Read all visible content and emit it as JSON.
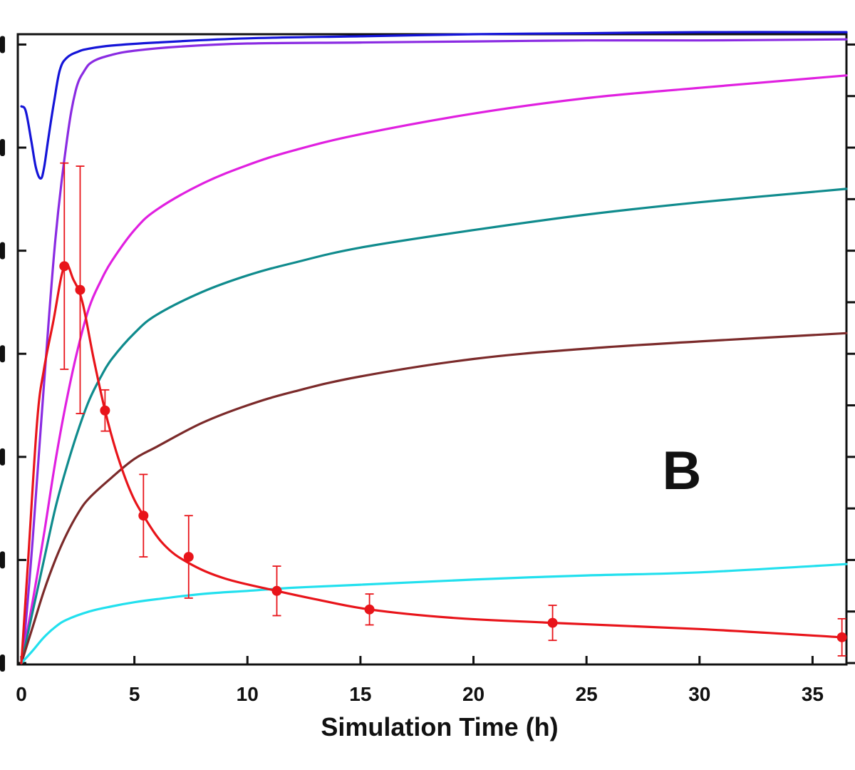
{
  "chart_data": {
    "type": "line",
    "title": "",
    "panel_label": "B",
    "xlabel": "Simulation Time (h)",
    "ylabel": "",
    "xlim": [
      0,
      36.5
    ],
    "ylim": [
      0,
      6.1
    ],
    "x_ticks": [
      0,
      5,
      10,
      15,
      20,
      25,
      30,
      35
    ],
    "x_tick_labels": [
      "0",
      "5",
      "10",
      "15",
      "20",
      "25",
      "30",
      "35"
    ],
    "left_y_ticks": [
      0,
      1,
      2,
      3,
      4,
      5,
      6
    ],
    "right_y_ticks": [
      0,
      0.5,
      1,
      1.5,
      2,
      2.5,
      3,
      3.5,
      4,
      4.5,
      5,
      5.5,
      6
    ],
    "grid": false,
    "legend": "none",
    "series": [
      {
        "color": "#1414d8",
        "x": [
          0,
          0.2,
          0.45,
          0.65,
          0.85,
          1.0,
          1.2,
          1.45,
          1.7,
          2.0,
          2.5,
          3,
          4,
          6,
          10,
          15,
          20,
          25,
          30,
          36.5
        ],
        "values": [
          5.4,
          5.35,
          5.05,
          4.8,
          4.7,
          4.8,
          5.1,
          5.45,
          5.75,
          5.87,
          5.93,
          5.96,
          5.99,
          6.02,
          6.06,
          6.08,
          6.1,
          6.11,
          6.12,
          6.12
        ]
      },
      {
        "color": "#8a2be2",
        "x": [
          0,
          0.2,
          0.5,
          1.0,
          1.5,
          2.0,
          2.4,
          2.8,
          3.2,
          4,
          5,
          7,
          10,
          15,
          20,
          25,
          30,
          36.5
        ],
        "values": [
          0,
          0.4,
          1.2,
          2.7,
          4.1,
          5.05,
          5.55,
          5.75,
          5.84,
          5.9,
          5.94,
          5.98,
          6.01,
          6.02,
          6.03,
          6.04,
          6.04,
          6.05
        ]
      },
      {
        "color": "#e020e0",
        "x": [
          0,
          0.5,
          1,
          1.5,
          2,
          2.5,
          3,
          3.5,
          4,
          5,
          6,
          8,
          10,
          12,
          15,
          20,
          25,
          30,
          36.5
        ],
        "values": [
          0,
          0.6,
          1.25,
          1.95,
          2.55,
          3.05,
          3.45,
          3.7,
          3.9,
          4.2,
          4.4,
          4.65,
          4.83,
          4.97,
          5.13,
          5.33,
          5.48,
          5.58,
          5.7
        ]
      },
      {
        "color": "#0f8b8d",
        "x": [
          0,
          0.5,
          1,
          1.5,
          2,
          2.5,
          3,
          3.5,
          4,
          5,
          6,
          8,
          10,
          12,
          15,
          20,
          25,
          30,
          36.5
        ],
        "values": [
          0,
          0.5,
          1.0,
          1.5,
          1.9,
          2.25,
          2.55,
          2.77,
          2.95,
          3.2,
          3.38,
          3.6,
          3.76,
          3.88,
          4.03,
          4.2,
          4.35,
          4.47,
          4.6
        ]
      },
      {
        "color": "#7b2a2a",
        "x": [
          0,
          0.5,
          1,
          1.5,
          2,
          2.5,
          3,
          4,
          5,
          6,
          8,
          10,
          12,
          15,
          20,
          25,
          30,
          36.5
        ],
        "values": [
          0,
          0.35,
          0.7,
          1.0,
          1.25,
          1.45,
          1.6,
          1.8,
          1.98,
          2.1,
          2.33,
          2.5,
          2.63,
          2.78,
          2.95,
          3.05,
          3.12,
          3.2
        ]
      },
      {
        "color": "#22e0ee",
        "x": [
          0,
          0.5,
          1,
          1.5,
          2,
          3,
          4,
          5,
          6,
          8,
          10,
          12,
          15,
          20,
          25,
          30,
          36.5
        ],
        "values": [
          0,
          0.12,
          0.25,
          0.35,
          0.42,
          0.5,
          0.55,
          0.59,
          0.62,
          0.67,
          0.7,
          0.73,
          0.76,
          0.81,
          0.85,
          0.88,
          0.96
        ]
      },
      {
        "color": "#e8141a",
        "x": [
          0,
          0.3,
          0.7,
          1.0,
          1.4,
          1.9,
          2.3,
          2.7,
          3.2,
          3.7,
          4.2,
          4.8,
          5.4,
          6.3,
          7.4,
          9,
          11.3,
          13,
          15.4,
          19,
          23.5,
          30,
          36.3
        ],
        "values": [
          0,
          1.0,
          2.35,
          2.85,
          3.3,
          3.85,
          3.72,
          3.5,
          2.95,
          2.45,
          2.05,
          1.68,
          1.43,
          1.15,
          0.97,
          0.82,
          0.7,
          0.62,
          0.52,
          0.44,
          0.39,
          0.33,
          0.25
        ]
      }
    ],
    "observed": {
      "color": "#e8141a",
      "x": [
        1.9,
        2.6,
        3.7,
        5.4,
        7.4,
        11.3,
        15.4,
        23.5,
        36.3
      ],
      "values": [
        3.85,
        3.62,
        2.45,
        1.43,
        1.03,
        0.7,
        0.52,
        0.39,
        0.25
      ],
      "errors": [
        1.0,
        1.2,
        0.2,
        0.4,
        0.4,
        0.24,
        0.15,
        0.17,
        0.18
      ]
    }
  }
}
